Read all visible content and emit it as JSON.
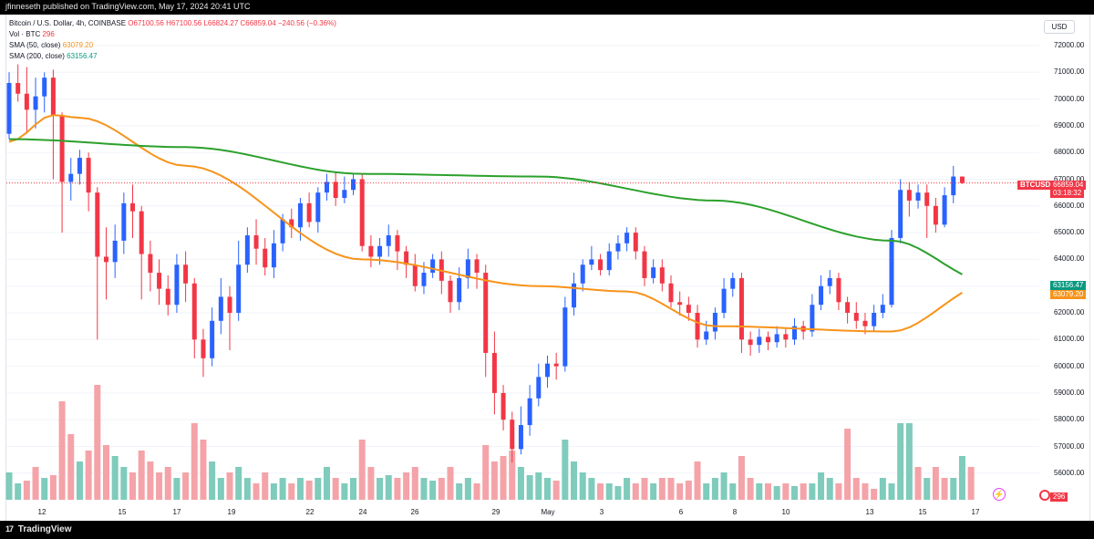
{
  "header": {
    "published": "jfinneseth published on TradingView.com, May 17, 2024 20:41 UTC"
  },
  "footer": {
    "brand": "TradingView",
    "brand_mark": "17"
  },
  "legend": {
    "symbol": "Bitcoin / U.S. Dollar, 4h, COINBASE",
    "ohlc": "O67100.56 H67100.56 L66824.27 C66859.04 −240.56 (−0.36%)",
    "volume_label": "Vol · BTC",
    "volume_value": "296",
    "sma50_label": "SMA (50, close)",
    "sma50_value": "63079.20",
    "sma200_label": "SMA (200, close)",
    "sma200_value": "63156.47"
  },
  "axis": {
    "currency": "USD",
    "price_ticks": [
      "72000.00",
      "71000.00",
      "70000.00",
      "69000.00",
      "68000.00",
      "67000.00",
      "66000.00",
      "65000.00",
      "64000.00",
      "63000.00",
      "62000.00",
      "61000.00",
      "60000.00",
      "59000.00",
      "58000.00",
      "57000.00",
      "56000.00"
    ],
    "date_ticks": [
      "12",
      "15",
      "17",
      "19",
      "22",
      "24",
      "26",
      "29",
      "May",
      "3",
      "6",
      "8",
      "10",
      "13",
      "15",
      "17"
    ]
  },
  "tags": {
    "symbol": "BTCUSD",
    "last_price": "66859.04",
    "countdown": "03:18:32",
    "sma200": "63156.47",
    "sma50": "63079.20",
    "volume": "296"
  },
  "colors": {
    "up": "#2962ff",
    "down": "#f23645",
    "vol_up": "#7fcbbc",
    "vol_down": "#f4a3a8",
    "sma50": "#f7931a",
    "sma200": "#2ba02b",
    "price_line": "#f23645"
  },
  "icons": {
    "bolt": "bolt-icon",
    "flag": "circle-flag-icon"
  },
  "chart_data": {
    "type": "candlestick",
    "symbol": "BTCUSD",
    "timeframe": "4h",
    "ylim": [
      55500,
      72500
    ],
    "last_price": 66859.04,
    "candles": [
      [
        68700,
        70600,
        71000,
        68500
      ],
      [
        70600,
        70200,
        71300,
        69900
      ],
      [
        70200,
        69600,
        71200,
        68700
      ],
      [
        69600,
        70100,
        70800,
        68900
      ],
      [
        70100,
        70800,
        71000,
        69500
      ],
      [
        70800,
        69400,
        71100,
        67000
      ],
      [
        69400,
        66900,
        69500,
        65000
      ],
      [
        66900,
        67200,
        67800,
        66200
      ],
      [
        67200,
        67800,
        68100,
        66800
      ],
      [
        67800,
        66500,
        68000,
        65800
      ],
      [
        66500,
        64100,
        66700,
        61000
      ],
      [
        64100,
        63900,
        65200,
        62500
      ],
      [
        63900,
        64700,
        65300,
        63300
      ],
      [
        64700,
        66100,
        66500,
        64200
      ],
      [
        66100,
        65800,
        66800,
        64800
      ],
      [
        65800,
        64200,
        66000,
        62500
      ],
      [
        64200,
        63500,
        64700,
        62800
      ],
      [
        63500,
        62900,
        64000,
        62300
      ],
      [
        62900,
        62300,
        63400,
        61900
      ],
      [
        62300,
        63800,
        64200,
        62000
      ],
      [
        63800,
        63100,
        64300,
        62400
      ],
      [
        63100,
        61000,
        63300,
        60300
      ],
      [
        61000,
        60300,
        61400,
        59600
      ],
      [
        60300,
        61700,
        62200,
        60000
      ],
      [
        61700,
        62600,
        63300,
        61200
      ],
      [
        62600,
        62000,
        63000,
        60600
      ],
      [
        62000,
        63800,
        64700,
        61700
      ],
      [
        63800,
        64900,
        65200,
        63500
      ],
      [
        64900,
        64400,
        65500,
        63800
      ],
      [
        64400,
        63700,
        64800,
        63400
      ],
      [
        63700,
        64600,
        65100,
        63300
      ],
      [
        64600,
        65500,
        65700,
        64300
      ],
      [
        65500,
        65200,
        65900,
        64800
      ],
      [
        65200,
        66100,
        66300,
        64700
      ],
      [
        66100,
        65400,
        66500,
        65200
      ],
      [
        65400,
        66500,
        66700,
        65000
      ],
      [
        66500,
        66900,
        67200,
        66200
      ],
      [
        66900,
        66300,
        67300,
        66000
      ],
      [
        66300,
        66600,
        67100,
        66100
      ],
      [
        66600,
        67000,
        67200,
        66400
      ],
      [
        67000,
        64500,
        67200,
        64300
      ],
      [
        64500,
        64100,
        64900,
        63700
      ],
      [
        64100,
        64500,
        64800,
        63800
      ],
      [
        64500,
        64900,
        65300,
        64100
      ],
      [
        64900,
        64300,
        65100,
        63600
      ],
      [
        64300,
        63800,
        64500,
        63300
      ],
      [
        63800,
        63000,
        64200,
        62800
      ],
      [
        63000,
        63500,
        63900,
        62700
      ],
      [
        63500,
        64000,
        64200,
        63300
      ],
      [
        64000,
        63200,
        64300,
        62700
      ],
      [
        63200,
        62400,
        63400,
        62000
      ],
      [
        62400,
        63300,
        63700,
        62100
      ],
      [
        63300,
        64000,
        64400,
        62900
      ],
      [
        64000,
        63500,
        64200,
        62900
      ],
      [
        63500,
        60500,
        63800,
        59600
      ],
      [
        60500,
        59000,
        61300,
        58200
      ],
      [
        59000,
        58000,
        59300,
        57600
      ],
      [
        58000,
        56900,
        58300,
        56400
      ],
      [
        56900,
        57800,
        58500,
        56700
      ],
      [
        57800,
        58800,
        59300,
        57400
      ],
      [
        58800,
        59600,
        60100,
        58500
      ],
      [
        59600,
        60100,
        60400,
        59200
      ],
      [
        60100,
        60000,
        60500,
        59500
      ],
      [
        60000,
        62200,
        62600,
        59800
      ],
      [
        62200,
        63100,
        63500,
        61900
      ],
      [
        63100,
        63800,
        64000,
        62800
      ],
      [
        63800,
        64000,
        64500,
        63600
      ],
      [
        64000,
        63600,
        64200,
        63400
      ],
      [
        63600,
        64300,
        64600,
        63400
      ],
      [
        64300,
        64600,
        64900,
        64000
      ],
      [
        64600,
        65000,
        65200,
        64300
      ],
      [
        65000,
        64300,
        65200,
        64000
      ],
      [
        64300,
        63300,
        64500,
        63000
      ],
      [
        63300,
        63700,
        64000,
        63100
      ],
      [
        63700,
        63100,
        64000,
        62800
      ],
      [
        63100,
        62400,
        63400,
        62200
      ],
      [
        62400,
        62300,
        62800,
        61900
      ],
      [
        62300,
        62000,
        62600,
        61700
      ],
      [
        62000,
        61000,
        62300,
        60700
      ],
      [
        61000,
        61300,
        61700,
        60800
      ],
      [
        61300,
        62000,
        62200,
        61000
      ],
      [
        62000,
        62900,
        63300,
        61800
      ],
      [
        62900,
        63300,
        63500,
        62600
      ],
      [
        63300,
        61000,
        63500,
        60500
      ],
      [
        61000,
        60800,
        61300,
        60400
      ],
      [
        60800,
        61100,
        61400,
        60500
      ],
      [
        61100,
        60900,
        61300,
        60600
      ],
      [
        60900,
        61200,
        61500,
        60700
      ],
      [
        61200,
        61000,
        61400,
        60700
      ],
      [
        61000,
        61500,
        61800,
        60800
      ],
      [
        61500,
        61300,
        61700,
        61000
      ],
      [
        61300,
        62300,
        62700,
        61100
      ],
      [
        62300,
        63000,
        63400,
        62100
      ],
      [
        63000,
        63300,
        63600,
        62700
      ],
      [
        63300,
        62400,
        63500,
        62100
      ],
      [
        62400,
        62000,
        62600,
        61600
      ],
      [
        62000,
        61700,
        62400,
        61400
      ],
      [
        61700,
        61500,
        62000,
        61200
      ],
      [
        61500,
        62000,
        62300,
        61300
      ],
      [
        62000,
        62300,
        62700,
        61800
      ],
      [
        62300,
        64800,
        65100,
        62200
      ],
      [
        64800,
        66600,
        67000,
        64600
      ],
      [
        66600,
        66200,
        66900,
        65600
      ],
      [
        66200,
        66500,
        66800,
        65900
      ],
      [
        66500,
        66000,
        66800,
        64800
      ],
      [
        66000,
        65300,
        66300,
        65000
      ],
      [
        65300,
        66400,
        66700,
        65200
      ],
      [
        66400,
        67100,
        67500,
        66100
      ],
      [
        67100,
        66859,
        67100,
        66824
      ]
    ],
    "sma50": [
      [
        0,
        68400
      ],
      [
        5,
        69400
      ],
      [
        8,
        69300
      ],
      [
        20,
        67500
      ],
      [
        40,
        64000
      ],
      [
        60,
        63000
      ],
      [
        70,
        62800
      ],
      [
        80,
        61500
      ],
      [
        100,
        61300
      ],
      [
        111,
        63079
      ]
    ],
    "sma200": [
      [
        0,
        68500
      ],
      [
        20,
        68200
      ],
      [
        40,
        67200
      ],
      [
        60,
        67100
      ],
      [
        80,
        66200
      ],
      [
        100,
        64700
      ],
      [
        111,
        63156
      ]
    ],
    "volume": [
      [
        50,
        1
      ],
      [
        30,
        1
      ],
      [
        35,
        0
      ],
      [
        60,
        0
      ],
      [
        40,
        1
      ],
      [
        45,
        0
      ],
      [
        180,
        0
      ],
      [
        120,
        0
      ],
      [
        70,
        1
      ],
      [
        90,
        0
      ],
      [
        210,
        0
      ],
      [
        100,
        0
      ],
      [
        80,
        1
      ],
      [
        60,
        1
      ],
      [
        50,
        0
      ],
      [
        90,
        0
      ],
      [
        70,
        0
      ],
      [
        50,
        0
      ],
      [
        60,
        0
      ],
      [
        40,
        1
      ],
      [
        50,
        0
      ],
      [
        140,
        0
      ],
      [
        110,
        0
      ],
      [
        70,
        1
      ],
      [
        40,
        1
      ],
      [
        50,
        0
      ],
      [
        60,
        1
      ],
      [
        40,
        1
      ],
      [
        30,
        0
      ],
      [
        50,
        0
      ],
      [
        30,
        1
      ],
      [
        40,
        1
      ],
      [
        30,
        0
      ],
      [
        40,
        1
      ],
      [
        35,
        0
      ],
      [
        40,
        1
      ],
      [
        60,
        1
      ],
      [
        40,
        0
      ],
      [
        30,
        1
      ],
      [
        40,
        1
      ],
      [
        110,
        0
      ],
      [
        60,
        0
      ],
      [
        40,
        1
      ],
      [
        45,
        1
      ],
      [
        40,
        0
      ],
      [
        50,
        0
      ],
      [
        60,
        0
      ],
      [
        40,
        1
      ],
      [
        35,
        1
      ],
      [
        40,
        0
      ],
      [
        60,
        0
      ],
      [
        30,
        1
      ],
      [
        40,
        1
      ],
      [
        30,
        0
      ],
      [
        100,
        0
      ],
      [
        70,
        0
      ],
      [
        80,
        0
      ],
      [
        90,
        0
      ],
      [
        60,
        1
      ],
      [
        45,
        1
      ],
      [
        50,
        1
      ],
      [
        40,
        1
      ],
      [
        35,
        0
      ],
      [
        110,
        1
      ],
      [
        70,
        1
      ],
      [
        50,
        1
      ],
      [
        40,
        1
      ],
      [
        30,
        0
      ],
      [
        30,
        1
      ],
      [
        25,
        1
      ],
      [
        40,
        1
      ],
      [
        30,
        0
      ],
      [
        40,
        0
      ],
      [
        30,
        1
      ],
      [
        40,
        0
      ],
      [
        40,
        0
      ],
      [
        30,
        0
      ],
      [
        35,
        0
      ],
      [
        70,
        0
      ],
      [
        30,
        1
      ],
      [
        40,
        1
      ],
      [
        50,
        1
      ],
      [
        30,
        1
      ],
      [
        80,
        0
      ],
      [
        40,
        0
      ],
      [
        30,
        1
      ],
      [
        30,
        0
      ],
      [
        25,
        1
      ],
      [
        30,
        0
      ],
      [
        25,
        1
      ],
      [
        30,
        0
      ],
      [
        30,
        1
      ],
      [
        50,
        1
      ],
      [
        40,
        1
      ],
      [
        30,
        0
      ],
      [
        130,
        0
      ],
      [
        40,
        0
      ],
      [
        30,
        0
      ],
      [
        20,
        0
      ],
      [
        40,
        1
      ],
      [
        30,
        1
      ],
      [
        140,
        1
      ],
      [
        140,
        1
      ],
      [
        60,
        0
      ],
      [
        40,
        1
      ],
      [
        60,
        0
      ],
      [
        40,
        0
      ],
      [
        40,
        1
      ],
      [
        80,
        1
      ],
      [
        60,
        0
      ]
    ]
  }
}
